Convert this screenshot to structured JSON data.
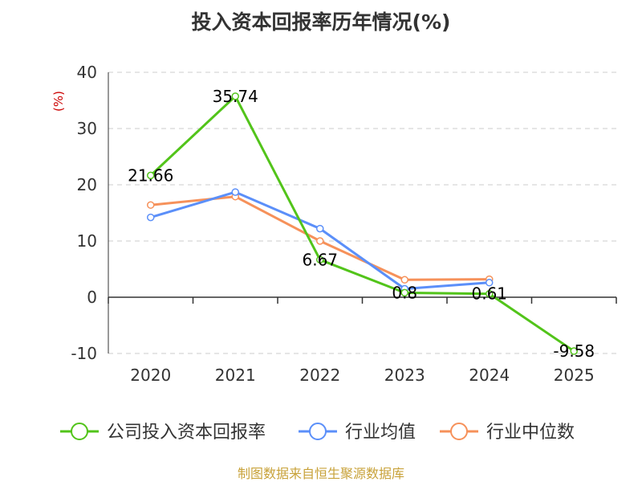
{
  "title": "投入资本回报率历年情况(%)",
  "source": "制图数据来自恒生聚源数据库",
  "chart_data": {
    "type": "line",
    "title": "投入资本回报率历年情况(%)",
    "ylabel": "(%)",
    "xlabel": "",
    "categories": [
      "2020",
      "2021",
      "2022",
      "2023",
      "2024",
      "2025"
    ],
    "ylim": [
      -10,
      40
    ],
    "yticks": [
      -10,
      0,
      10,
      20,
      30,
      40
    ],
    "grid": true,
    "legend_position": "bottom",
    "series": [
      {
        "name": "公司投入资本回报率",
        "color": "#52c41a",
        "values": [
          21.66,
          35.74,
          6.67,
          0.8,
          0.61,
          -9.58
        ],
        "labels": [
          "21.66",
          "35.74",
          "6.67",
          "0.8",
          "0.61",
          "-9.58"
        ]
      },
      {
        "name": "行业均值",
        "color": "#5b8ff9",
        "values": [
          14.2,
          18.7,
          12.2,
          1.5,
          2.6,
          null
        ],
        "labels": []
      },
      {
        "name": "行业中位数",
        "color": "#f6915a",
        "values": [
          16.4,
          17.9,
          10.0,
          3.1,
          3.2,
          null
        ],
        "labels": []
      }
    ]
  }
}
